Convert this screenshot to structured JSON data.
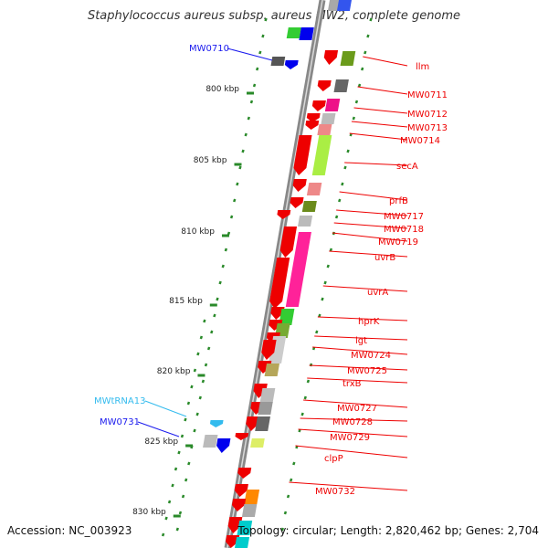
{
  "title": "Staphylococcus aureus subsp. aureus MW2, complete genome",
  "footer": {
    "accession": "Accession: NC_003923",
    "topology": "Topology: circular; Length: 2,820,462 bp; Genes: 2,704"
  },
  "colors": {
    "backbone": "#888888",
    "tick": "#2a8a2a",
    "right_label": "#ee0000",
    "left_label": "#1a1aee",
    "trna_label": "#33bbee"
  },
  "kbp_ticks": [
    "800 kbp",
    "805 kbp",
    "810 kbp",
    "815 kbp",
    "820 kbp",
    "825 kbp",
    "830 kbp"
  ],
  "left_labels": [
    {
      "text": "MW0710",
      "kind": "gene"
    },
    {
      "text": "MWtRNA13",
      "kind": "trna"
    },
    {
      "text": "MW0731",
      "kind": "gene"
    }
  ],
  "right_labels": [
    "llm",
    "MW0711",
    "MW0712",
    "MW0713",
    "MW0714",
    "secA",
    "prfB",
    "MW0717",
    "MW0718",
    "MW0719",
    "uvrB",
    "uvrA",
    "hprK",
    "lgt",
    "MW0724",
    "MW0725",
    "trxB",
    "MW0727",
    "MW0728",
    "MW0729",
    "clpP",
    "MW0732"
  ]
}
